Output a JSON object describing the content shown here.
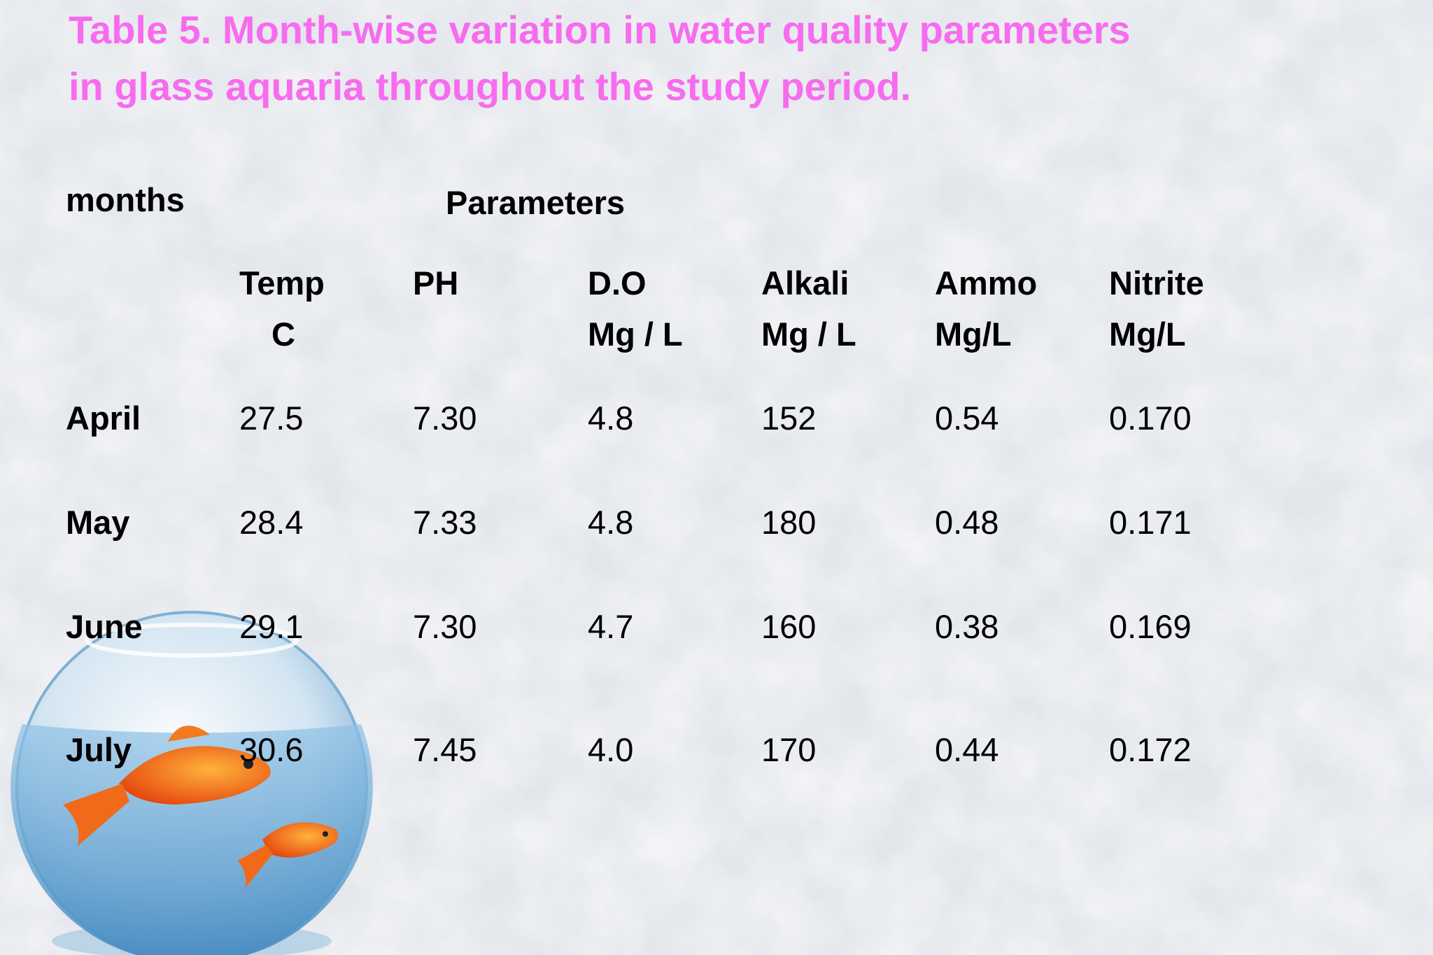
{
  "title": "Table 5. Month-wise variation in water quality parameters in glass aquaria throughout the study period.",
  "table": {
    "corner": "months",
    "group": "Parameters",
    "columns": [
      {
        "name": "Temp",
        "unit": "C"
      },
      {
        "name": "PH"
      },
      {
        "name": "D.O",
        "unit": "Mg / L"
      },
      {
        "name": "Alkali",
        "unit": "Mg / L"
      },
      {
        "name": "Ammo",
        "unit": "Mg/L"
      },
      {
        "name": "Nitrite",
        "unit": "Mg/L"
      }
    ],
    "rows": [
      [
        "April",
        "27.5",
        "7.30",
        "4.8",
        "152",
        "0.54",
        "0.170"
      ],
      [
        "May",
        "28.4",
        "7.33",
        "4.8",
        "180",
        "0.48",
        "0.171"
      ],
      [
        "June",
        "29.1",
        "7.30",
        "4.7",
        "160",
        "0.38",
        "0.169"
      ],
      [
        "July",
        "30.6",
        "7.45",
        "4.0",
        "170",
        "0.44",
        "0.172"
      ]
    ]
  }
}
